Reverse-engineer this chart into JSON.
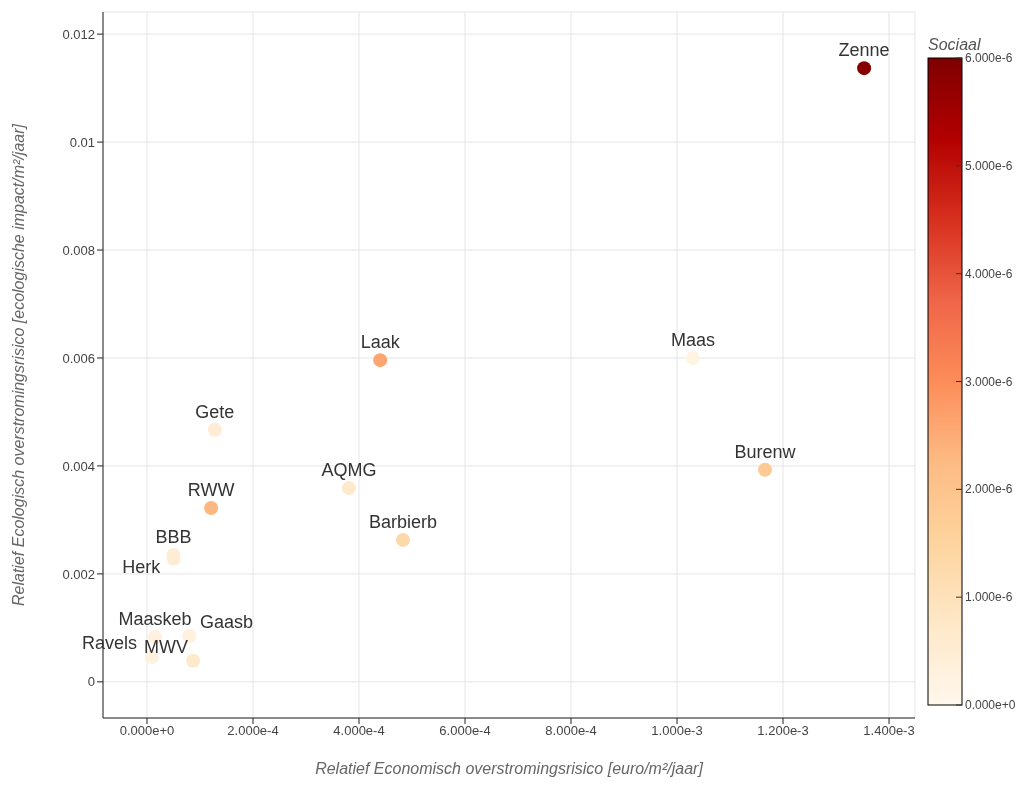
{
  "chart_data": {
    "type": "scatter",
    "xlabel": "Relatief Economisch overstromingsrisico [euro/m²/jaar]",
    "ylabel": "Relatief Ecologisch overstromingsrisico [ecologische impact/m²/jaar]",
    "clabel": "Sociaal",
    "x": [
      0.001353,
      0.00103,
      0.001166,
      0.00044,
      0.000128,
      0.000381,
      0.000483,
      0.000121,
      5e-05,
      5e-05,
      1.5e-05,
      8e-05,
      9e-06,
      8.7e-05
    ],
    "values": [
      0.01137,
      0.006,
      0.00393,
      0.00596,
      0.00467,
      0.00359,
      0.00263,
      0.00322,
      0.00235,
      0.00228,
      0.00083,
      0.00085,
      0.00046,
      0.00039
    ],
    "cvalues": [
      5.9e-06,
      2e-07,
      1.8e-06,
      2.6e-06,
      5e-07,
      7e-07,
      1.3e-06,
      2.3e-06,
      5e-07,
      5e-07,
      3e-07,
      3e-07,
      3e-07,
      7e-07
    ],
    "annotations": [
      {
        "text": "Zenne",
        "x": 0.001353,
        "y": 0.01137
      },
      {
        "text": "Maas",
        "x": 0.00103,
        "y": 0.006
      },
      {
        "text": "Burenw",
        "x": 0.001166,
        "y": 0.00393
      },
      {
        "text": "Laak",
        "x": 0.00044,
        "y": 0.00596
      },
      {
        "text": "Gete",
        "x": 0.000128,
        "y": 0.00467
      },
      {
        "text": "AQMG",
        "x": 0.000381,
        "y": 0.00359
      },
      {
        "text": "Barbierb",
        "x": 0.000483,
        "y": 0.00263
      },
      {
        "text": "RWW",
        "x": 0.000121,
        "y": 0.00322
      },
      {
        "text": "BBB",
        "x": 5e-05,
        "y": 0.00235
      },
      {
        "text": "Herk",
        "x": 5e-05,
        "y": 0.00228
      },
      {
        "text": "Maaskeb",
        "x": 1.5e-05,
        "y": 0.00083
      },
      {
        "text": "Gaasb",
        "x": 8e-05,
        "y": 0.00085
      },
      {
        "text": "Ravels",
        "x": 9e-06,
        "y": 0.00046
      },
      {
        "text": "MWV",
        "x": 8.7e-05,
        "y": 0.00039
      }
    ],
    "xlim": [
      -8.3e-05,
      0.001449
    ],
    "xticks": [
      {
        "value": 0,
        "label": "0.000e+0"
      },
      {
        "value": 0.0002,
        "label": "2.000e-4"
      },
      {
        "value": 0.0004,
        "label": "4.000e-4"
      },
      {
        "value": 0.0006,
        "label": "6.000e-4"
      },
      {
        "value": 0.0008,
        "label": "8.000e-4"
      },
      {
        "value": 0.001,
        "label": "1.000e-3"
      },
      {
        "value": 0.0012,
        "label": "1.200e-3"
      },
      {
        "value": 0.0014,
        "label": "1.400e-3"
      }
    ],
    "ylim": [
      -0.00067,
      0.01241
    ],
    "yticks": [
      0,
      0.002,
      0.004,
      0.006,
      0.008,
      0.01,
      0.012
    ],
    "clim": [
      0,
      6e-06
    ],
    "cticks": [
      {
        "value": 0,
        "label": "0.000e+0"
      },
      {
        "value": 1e-06,
        "label": "1.000e-6"
      },
      {
        "value": 2e-06,
        "label": "2.000e-6"
      },
      {
        "value": 3e-06,
        "label": "3.000e-6"
      },
      {
        "value": 4e-06,
        "label": "4.000e-6"
      },
      {
        "value": 5e-06,
        "label": "5.000e-6"
      },
      {
        "value": 6e-06,
        "label": "6.000e-6"
      }
    ],
    "grid": true,
    "marker": "circle"
  }
}
